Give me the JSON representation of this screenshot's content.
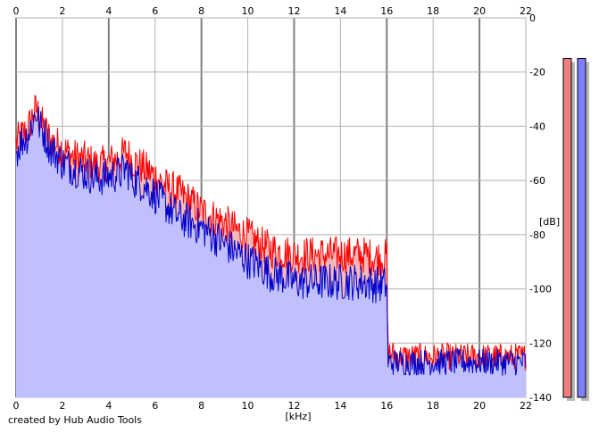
{
  "chart_data": {
    "type": "area",
    "xlabel": "[kHz]",
    "ylabel": "[dB]",
    "xlim": [
      0,
      22
    ],
    "ylim": [
      -140,
      0
    ],
    "xticks": [
      "0",
      "2",
      "4",
      "6",
      "8",
      "10",
      "12",
      "14",
      "16",
      "18",
      "20",
      "22"
    ],
    "yticks": [
      "0",
      "-20",
      "-40",
      "-60",
      "-80",
      "-100",
      "-120",
      "-140"
    ],
    "grid": true,
    "series": [
      {
        "color": "#ff0000",
        "fill": "#f7b8b8",
        "x": [
          0,
          0.25,
          0.5,
          0.75,
          0.9,
          1.0,
          1.25,
          1.5,
          1.75,
          2.0,
          2.5,
          3.0,
          3.5,
          4.0,
          4.5,
          4.75,
          5.0,
          5.5,
          6.0,
          6.5,
          7.0,
          7.5,
          8.0,
          8.5,
          9.0,
          9.5,
          10.0,
          10.5,
          11.0,
          11.5,
          12.0,
          12.5,
          13.0,
          13.5,
          14.0,
          14.5,
          15.0,
          15.5,
          16.0,
          16.05,
          16.5,
          17.0,
          17.5,
          18.0,
          18.5,
          19.0,
          19.5,
          20.0,
          20.5,
          21.0,
          21.5,
          22.0
        ],
        "values": [
          -45,
          -42,
          -40,
          -34,
          -32,
          -36,
          -40,
          -44,
          -45,
          -47,
          -50,
          -51,
          -53,
          -52,
          -50,
          -48,
          -51,
          -54,
          -57,
          -61,
          -63,
          -66,
          -70,
          -72,
          -74,
          -77,
          -79,
          -82,
          -84,
          -85,
          -86,
          -86,
          -86,
          -86,
          -86,
          -86,
          -86,
          -87,
          -87,
          -122,
          -124,
          -124,
          -124,
          -124,
          -124,
          -124,
          -124,
          -124,
          -124,
          -124,
          -124,
          -124
        ]
      },
      {
        "color": "#0000cc",
        "fill": "#c0c0ff",
        "x": [
          0,
          0.25,
          0.5,
          0.75,
          0.9,
          1.0,
          1.25,
          1.5,
          1.75,
          2.0,
          2.5,
          3.0,
          3.5,
          4.0,
          4.5,
          4.75,
          5.0,
          5.5,
          6.0,
          6.5,
          7.0,
          7.5,
          8.0,
          8.5,
          9.0,
          9.5,
          10.0,
          10.5,
          11.0,
          11.5,
          12.0,
          12.5,
          13.0,
          13.5,
          14.0,
          14.5,
          15.0,
          15.5,
          16.0,
          16.05,
          16.5,
          17.0,
          17.5,
          18.0,
          18.5,
          19.0,
          19.5,
          20.0,
          20.5,
          21.0,
          21.5,
          22.0
        ],
        "values": [
          -48,
          -44,
          -42,
          -36,
          -33,
          -38,
          -42,
          -47,
          -49,
          -52,
          -54,
          -56,
          -58,
          -57,
          -56,
          -54,
          -58,
          -60,
          -64,
          -68,
          -72,
          -74,
          -76,
          -79,
          -82,
          -85,
          -88,
          -90,
          -93,
          -94,
          -96,
          -96,
          -96,
          -96,
          -96,
          -96,
          -96,
          -97,
          -97,
          -126,
          -126,
          -126,
          -126,
          -126,
          -126,
          -126,
          -126,
          -126,
          -126,
          -126,
          -126,
          -126
        ]
      }
    ]
  },
  "meters": [
    {
      "color": "#f08080",
      "level_db": -15
    },
    {
      "color": "#8080ff",
      "level_db": -15
    }
  ],
  "credit": "created by Hub Audio Tools"
}
